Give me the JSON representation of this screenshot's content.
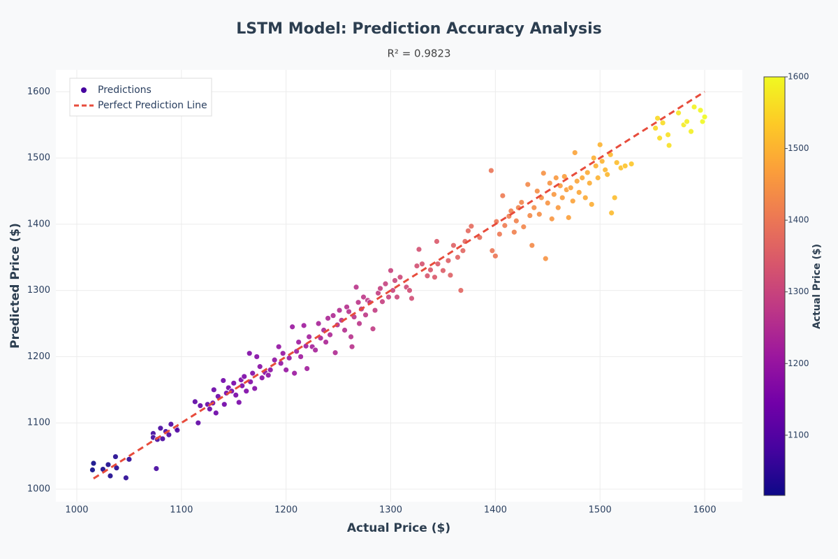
{
  "chart_data": {
    "type": "scatter",
    "title": "LSTM Model: Prediction Accuracy Analysis",
    "subtitle": "R² = 0.9823",
    "x_label": "Actual Price ($)",
    "y_label": "Predicted Price ($)",
    "xlim": [
      980,
      1636
    ],
    "ylim": [
      981,
      1633
    ],
    "xticks": [
      1000,
      1100,
      1200,
      1300,
      1400,
      1500,
      1600
    ],
    "yticks": [
      1000,
      1100,
      1200,
      1300,
      1400,
      1500,
      1600
    ],
    "grid": true,
    "legend": "top-left",
    "series": [
      {
        "name": "Predictions",
        "mode": "markers",
        "x": [
          1015,
          1016,
          1025,
          1030,
          1032,
          1037,
          1038,
          1047,
          1050,
          1073,
          1073,
          1076,
          1077,
          1080,
          1082,
          1085,
          1088,
          1090,
          1095,
          1096,
          1113,
          1116,
          1118,
          1125,
          1127,
          1130,
          1131,
          1133,
          1135,
          1140,
          1141,
          1143,
          1145,
          1148,
          1150,
          1152,
          1155,
          1157,
          1158,
          1160,
          1162,
          1165,
          1166,
          1168,
          1170,
          1172,
          1175,
          1177,
          1180,
          1183,
          1185,
          1189,
          1193,
          1195,
          1197,
          1200,
          1203,
          1206,
          1208,
          1210,
          1212,
          1214,
          1217,
          1219,
          1220,
          1222,
          1225,
          1228,
          1231,
          1233,
          1236,
          1238,
          1240,
          1242,
          1245,
          1247,
          1249,
          1251,
          1253,
          1256,
          1258,
          1260,
          1262,
          1263,
          1265,
          1267,
          1269,
          1270,
          1272,
          1274,
          1276,
          1278,
          1280,
          1283,
          1285,
          1288,
          1290,
          1292,
          1295,
          1298,
          1300,
          1302,
          1304,
          1306,
          1309,
          1315,
          1318,
          1320,
          1325,
          1327,
          1330,
          1335,
          1338,
          1342,
          1344,
          1345,
          1350,
          1355,
          1357,
          1360,
          1364,
          1367,
          1369,
          1371,
          1374,
          1377,
          1385,
          1396,
          1397,
          1400,
          1401,
          1404,
          1407,
          1409,
          1413,
          1415,
          1418,
          1420,
          1422,
          1425,
          1427,
          1431,
          1433,
          1435,
          1437,
          1440,
          1442,
          1444,
          1446,
          1448,
          1450,
          1452,
          1454,
          1456,
          1458,
          1460,
          1462,
          1464,
          1466,
          1468,
          1470,
          1472,
          1474,
          1476,
          1478,
          1480,
          1483,
          1486,
          1488,
          1490,
          1492,
          1494,
          1496,
          1498,
          1500,
          1502,
          1505,
          1507,
          1510,
          1511,
          1514,
          1516,
          1520,
          1524,
          1530,
          1553,
          1555,
          1557,
          1560,
          1565,
          1566,
          1575,
          1580,
          1583,
          1587,
          1590,
          1596,
          1598,
          1600
        ],
        "values": [
          1029,
          1039,
          1030,
          1037,
          1020,
          1049,
          1032,
          1017,
          1045,
          1084,
          1078,
          1031,
          1075,
          1092,
          1076,
          1087,
          1082,
          1098,
          1092,
          1089,
          1132,
          1100,
          1126,
          1128,
          1121,
          1130,
          1150,
          1115,
          1140,
          1164,
          1128,
          1145,
          1153,
          1148,
          1160,
          1142,
          1131,
          1165,
          1156,
          1170,
          1148,
          1205,
          1162,
          1175,
          1152,
          1200,
          1185,
          1168,
          1176,
          1172,
          1180,
          1195,
          1215,
          1190,
          1205,
          1180,
          1198,
          1245,
          1175,
          1208,
          1222,
          1200,
          1247,
          1216,
          1182,
          1230,
          1215,
          1210,
          1250,
          1228,
          1240,
          1222,
          1258,
          1233,
          1262,
          1206,
          1248,
          1270,
          1255,
          1240,
          1275,
          1268,
          1230,
          1215,
          1260,
          1305,
          1282,
          1250,
          1272,
          1290,
          1263,
          1285,
          1282,
          1242,
          1270,
          1296,
          1303,
          1283,
          1310,
          1290,
          1330,
          1300,
          1315,
          1290,
          1320,
          1305,
          1300,
          1288,
          1337,
          1362,
          1340,
          1322,
          1331,
          1320,
          1374,
          1340,
          1330,
          1345,
          1323,
          1368,
          1350,
          1300,
          1360,
          1374,
          1390,
          1397,
          1380,
          1481,
          1360,
          1352,
          1404,
          1385,
          1443,
          1398,
          1412,
          1420,
          1388,
          1405,
          1425,
          1433,
          1396,
          1460,
          1413,
          1368,
          1425,
          1450,
          1415,
          1440,
          1477,
          1348,
          1432,
          1462,
          1408,
          1445,
          1470,
          1425,
          1458,
          1440,
          1472,
          1452,
          1410,
          1455,
          1435,
          1508,
          1465,
          1448,
          1470,
          1440,
          1478,
          1462,
          1430,
          1500,
          1488,
          1470,
          1520,
          1495,
          1482,
          1475,
          1505,
          1417,
          1440,
          1493,
          1485,
          1488,
          1491,
          1545,
          1560,
          1530,
          1553,
          1535,
          1519,
          1568,
          1550,
          1555,
          1540,
          1577,
          1572,
          1555,
          1562
        ]
      },
      {
        "name": "Perfect Prediction Line",
        "mode": "line",
        "color": "#e74c3c",
        "x": [
          1016,
          1600
        ],
        "values": [
          1016,
          1600
        ]
      }
    ],
    "colorbar": {
      "title": "Actual Price ($)",
      "lim": [
        1016,
        1600
      ],
      "ticks": [
        1100,
        1200,
        1300,
        1400,
        1500,
        1600
      ],
      "colorscale": [
        "#0d0887",
        "#46039f",
        "#7201a8",
        "#9c179e",
        "#bd3786",
        "#d8576b",
        "#ed7953",
        "#fb9f3a",
        "#fdca26",
        "#f0f921"
      ]
    }
  }
}
